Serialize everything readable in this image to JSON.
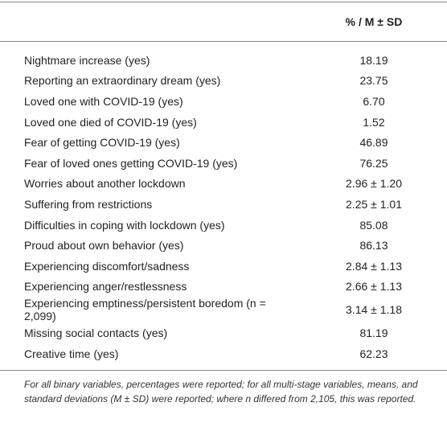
{
  "table": {
    "header": {
      "value_column": "% / M ± SD"
    },
    "rows": [
      [
        "Nightmare increase (yes)",
        "18.19"
      ],
      [
        "Reporting an extraordinary dream (yes)",
        "23.75"
      ],
      [
        "Loved one with COVID-19 (yes)",
        "6.70"
      ],
      [
        "Loved one died of COVID-19 (yes)",
        "1.52"
      ],
      [
        "Fear of getting COVID-19 (yes)",
        "46.89"
      ],
      [
        "Fear of loved ones getting COVID-19 (yes)",
        "76.25"
      ],
      [
        "Worries about another lockdown",
        "2.96 ± 1.20"
      ],
      [
        "Suffering from restrictions",
        "2.25 ± 1.01"
      ],
      [
        "Difficulties in coping with lockdown (yes)",
        "85.08"
      ],
      [
        "Proud about own behavior (yes)",
        "86.13"
      ],
      [
        "Experiencing discomfort/sadness",
        "2.84 ± 1.13"
      ],
      [
        "Experiencing anger/restlessness",
        "2.66 ± 1.13"
      ],
      [
        "Experiencing emptiness/persistent boredom (n = 2,099)",
        "3.14 ± 1.18"
      ],
      [
        "Missing social contacts (yes)",
        "81.19"
      ],
      [
        "Creative time (yes)",
        "62.23"
      ]
    ],
    "footnote": "For all binary variables, percentages were reported; for all multi-stage variables, means, and standard deviations (M ± SD) were reported; where n differed from 2,105, this was reported."
  }
}
